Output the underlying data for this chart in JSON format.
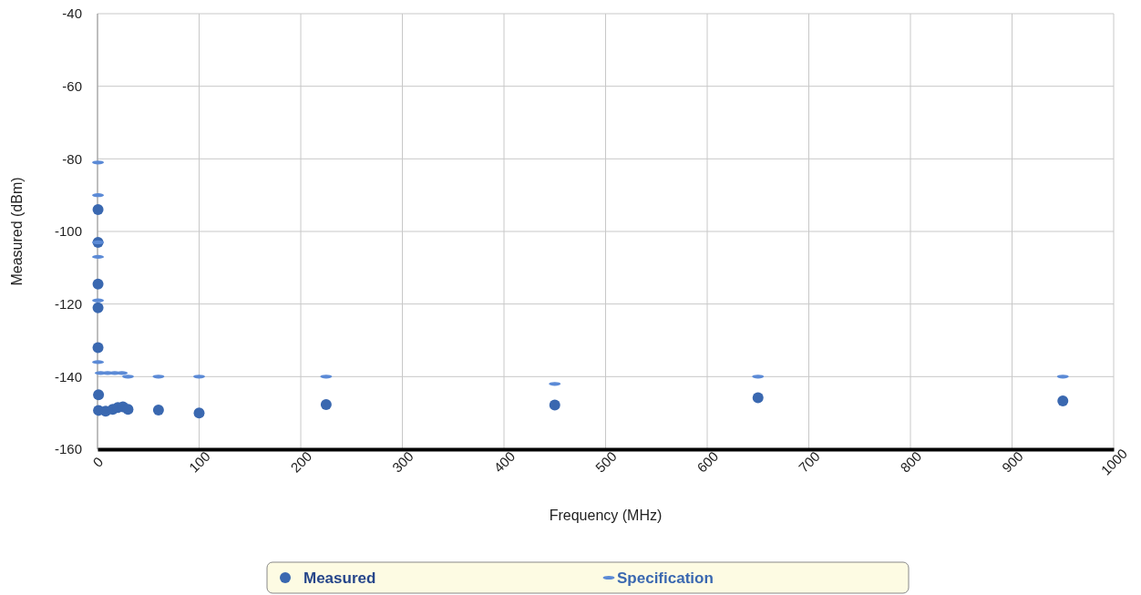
{
  "chart_data": {
    "type": "scatter",
    "xlabel": "Frequency (MHz)",
    "ylabel": "Measured (dBm)",
    "xlim": [
      0,
      1000
    ],
    "xticks": [
      0,
      100,
      200,
      300,
      400,
      500,
      600,
      700,
      800,
      900,
      1000
    ],
    "ylim": [
      -160,
      -40
    ],
    "yticks": [
      -160,
      -140,
      -120,
      -100,
      -80,
      -60,
      -40
    ],
    "grid": true,
    "legend": "bottom",
    "series": [
      {
        "name": "Measured",
        "color": "#3a68b0",
        "marker": "circle",
        "x": [
          0.5,
          0.5,
          0.5,
          0.5,
          0.5,
          1,
          1,
          8,
          15,
          20,
          25,
          30,
          60,
          100,
          225,
          450,
          650,
          950
        ],
        "values": [
          -94,
          -103,
          -114.5,
          -121,
          -132,
          -145,
          -149.3,
          -149.5,
          -149,
          -148.5,
          -148.3,
          -149,
          -149.2,
          -150,
          -147.7,
          -147.8,
          -145.8,
          -146.7
        ]
      },
      {
        "name": "Specification",
        "color": "#5b8ad6",
        "x": [
          0.5,
          0.5,
          0.5,
          0.5,
          0.5,
          0.5,
          3,
          10,
          17,
          24,
          30,
          60,
          100,
          225,
          450,
          650,
          950
        ],
        "values": [
          -81,
          -90,
          -103,
          -107,
          -119,
          -136,
          -139,
          -139,
          -139,
          -139,
          -140,
          -140,
          -140,
          -140,
          -142,
          -140,
          -140
        ]
      }
    ]
  }
}
